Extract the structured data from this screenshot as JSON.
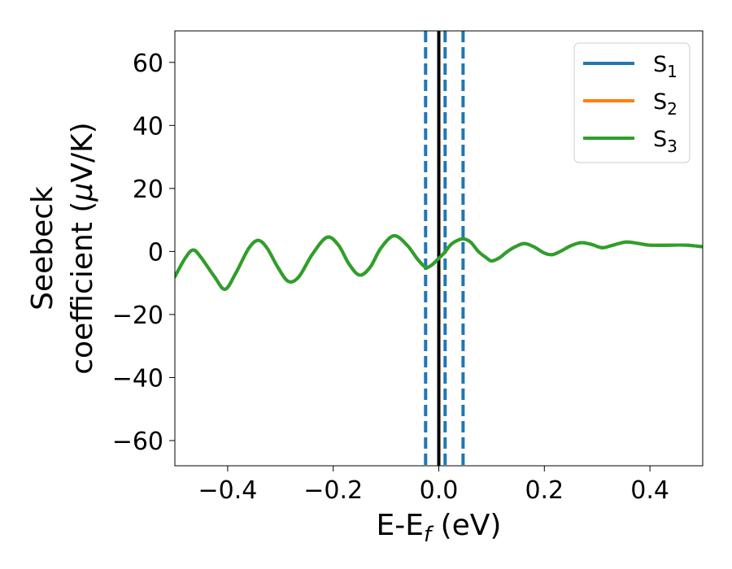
{
  "chart_data": {
    "type": "line",
    "xlabel_main": "E-E",
    "xlabel_sub": "f",
    "xlabel_unit": " (eV)",
    "ylabel_line1": "Seebeck",
    "ylabel_line2_text": "coefficient  (",
    "ylabel_line2_mu": "μ",
    "ylabel_line2_unit": "V/K)",
    "xlim": [
      -0.5,
      0.5
    ],
    "ylim": [
      -68,
      70
    ],
    "xticks": [
      {
        "value": -0.4,
        "label": "−0.4"
      },
      {
        "value": -0.2,
        "label": "−0.2"
      },
      {
        "value": 0.0,
        "label": "0.0"
      },
      {
        "value": 0.2,
        "label": "0.2"
      },
      {
        "value": 0.4,
        "label": "0.4"
      }
    ],
    "yticks": [
      {
        "value": 60,
        "label": "60"
      },
      {
        "value": 40,
        "label": "40"
      },
      {
        "value": 20,
        "label": "20"
      },
      {
        "value": 0,
        "label": "0"
      },
      {
        "value": -20,
        "label": "−20"
      },
      {
        "value": -40,
        "label": "−40"
      },
      {
        "value": -60,
        "label": "−60"
      }
    ],
    "legend_position": "top-right",
    "series": [
      {
        "base": "S",
        "sub": "1",
        "color": "#1f77b4",
        "x": [
          -0.5,
          -0.48,
          -0.465,
          -0.45,
          -0.425,
          -0.405,
          -0.385,
          -0.36,
          -0.342,
          -0.325,
          -0.305,
          -0.285,
          -0.265,
          -0.24,
          -0.212,
          -0.19,
          -0.17,
          -0.15,
          -0.13,
          -0.11,
          -0.085,
          -0.06,
          -0.04,
          -0.025,
          -0.015,
          -0.005,
          0.01,
          0.025,
          0.045,
          0.06,
          0.075,
          0.09,
          0.1,
          0.115,
          0.13,
          0.145,
          0.162,
          0.18,
          0.2,
          0.215,
          0.23,
          0.25,
          0.27,
          0.29,
          0.31,
          0.33,
          0.355,
          0.38,
          0.4,
          0.44,
          0.47,
          0.5
        ],
        "y": [
          -8,
          -2,
          0.5,
          -2,
          -8,
          -12,
          -7,
          1,
          3.5,
          1,
          -5,
          -9.5,
          -8,
          -1,
          4.5,
          2,
          -4,
          -7.5,
          -5,
          1,
          5,
          2,
          -2.5,
          -5,
          -4.5,
          -3,
          -0.5,
          2.5,
          4,
          3,
          0,
          -2,
          -3,
          -2,
          0,
          1.5,
          2.5,
          1.5,
          -0.5,
          -1,
          0,
          1.8,
          2.8,
          2.2,
          1.2,
          2,
          3,
          2.5,
          2,
          2,
          2,
          1.5
        ]
      },
      {
        "base": "S",
        "sub": "2",
        "color": "#ff7f0e",
        "x": [
          -0.5,
          -0.48,
          -0.465,
          -0.45,
          -0.425,
          -0.405,
          -0.385,
          -0.36,
          -0.342,
          -0.325,
          -0.305,
          -0.285,
          -0.265,
          -0.24,
          -0.212,
          -0.19,
          -0.17,
          -0.15,
          -0.13,
          -0.11,
          -0.085,
          -0.06,
          -0.04,
          -0.025,
          -0.015,
          -0.005,
          0.01,
          0.025,
          0.045,
          0.06,
          0.075,
          0.09,
          0.1,
          0.115,
          0.13,
          0.145,
          0.162,
          0.18,
          0.2,
          0.215,
          0.23,
          0.25,
          0.27,
          0.29,
          0.31,
          0.33,
          0.355,
          0.38,
          0.4,
          0.44,
          0.47,
          0.5
        ],
        "y": [
          -8,
          -2,
          0.5,
          -2,
          -8,
          -12,
          -7,
          1,
          3.5,
          1,
          -5,
          -9.5,
          -8,
          -1,
          4.5,
          2,
          -4,
          -7.5,
          -5,
          1,
          5,
          2,
          -2.5,
          -5,
          -4.5,
          -3,
          -0.5,
          2.5,
          4,
          3,
          0,
          -2,
          -3,
          -2,
          0,
          1.5,
          2.5,
          1.5,
          -0.5,
          -1,
          0,
          1.8,
          2.8,
          2.2,
          1.2,
          2,
          3,
          2.5,
          2,
          2,
          2,
          1.5
        ]
      },
      {
        "base": "S",
        "sub": "3",
        "color": "#2ca02c",
        "x": [
          -0.5,
          -0.48,
          -0.465,
          -0.45,
          -0.425,
          -0.405,
          -0.385,
          -0.36,
          -0.342,
          -0.325,
          -0.305,
          -0.285,
          -0.265,
          -0.24,
          -0.212,
          -0.19,
          -0.17,
          -0.15,
          -0.13,
          -0.11,
          -0.085,
          -0.06,
          -0.04,
          -0.025,
          -0.015,
          -0.005,
          0.01,
          0.025,
          0.045,
          0.06,
          0.075,
          0.09,
          0.1,
          0.115,
          0.13,
          0.145,
          0.162,
          0.18,
          0.2,
          0.215,
          0.23,
          0.25,
          0.27,
          0.29,
          0.31,
          0.33,
          0.355,
          0.38,
          0.4,
          0.44,
          0.47,
          0.5
        ],
        "y": [
          -8,
          -2,
          0.5,
          -2,
          -8,
          -12,
          -7,
          1,
          3.5,
          1,
          -5,
          -9.5,
          -8,
          -1,
          4.5,
          2,
          -4,
          -7.5,
          -5,
          1,
          5,
          2,
          -2.5,
          -5,
          -4.5,
          -3,
          -0.5,
          2.5,
          4,
          3,
          0,
          -2,
          -3,
          -2,
          0,
          1.5,
          2.5,
          1.5,
          -0.5,
          -1,
          0,
          1.8,
          2.8,
          2.2,
          1.2,
          2,
          3,
          2.5,
          2,
          2,
          2,
          1.5
        ]
      }
    ],
    "vertical_lines": [
      {
        "x": -0.025,
        "style": "dashed",
        "color": "#1f77b4"
      },
      {
        "x": 0.0,
        "style": "solid",
        "color": "#000000"
      },
      {
        "x": 0.012,
        "style": "dashed",
        "color": "#1f77b4"
      },
      {
        "x": 0.046,
        "style": "dashed",
        "color": "#1f77b4"
      }
    ]
  }
}
